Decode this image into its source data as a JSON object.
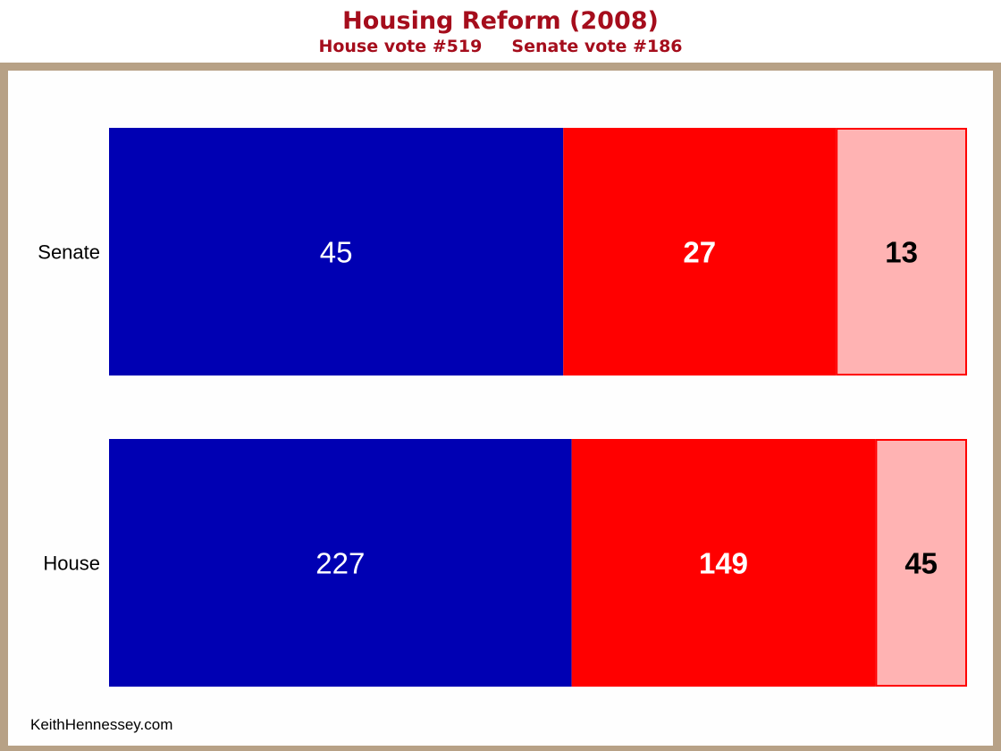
{
  "chart_data": {
    "type": "bar",
    "orientation": "horizontal",
    "stacked": true,
    "normalized": true,
    "title": "Housing Reform (2008)",
    "subtitle": "House vote #519     Senate vote #186",
    "categories": [
      "Senate",
      "House"
    ],
    "series": [
      {
        "values": [
          45,
          227
        ],
        "color": "#0000b3",
        "label_color": "#ffffff",
        "label_bold": false
      },
      {
        "values": [
          27,
          149
        ],
        "color": "#ff0000",
        "label_color": "#ffffff",
        "label_bold": true
      },
      {
        "values": [
          13,
          45
        ],
        "color": "#ffb3b3",
        "border": "#ff0000",
        "label_color": "#000000",
        "label_bold": true
      }
    ],
    "grid": false,
    "legend": "none"
  },
  "credit": "KeithHennessey.com",
  "colors": {
    "title": "#a50d1c",
    "frame": "#b7a186"
  }
}
